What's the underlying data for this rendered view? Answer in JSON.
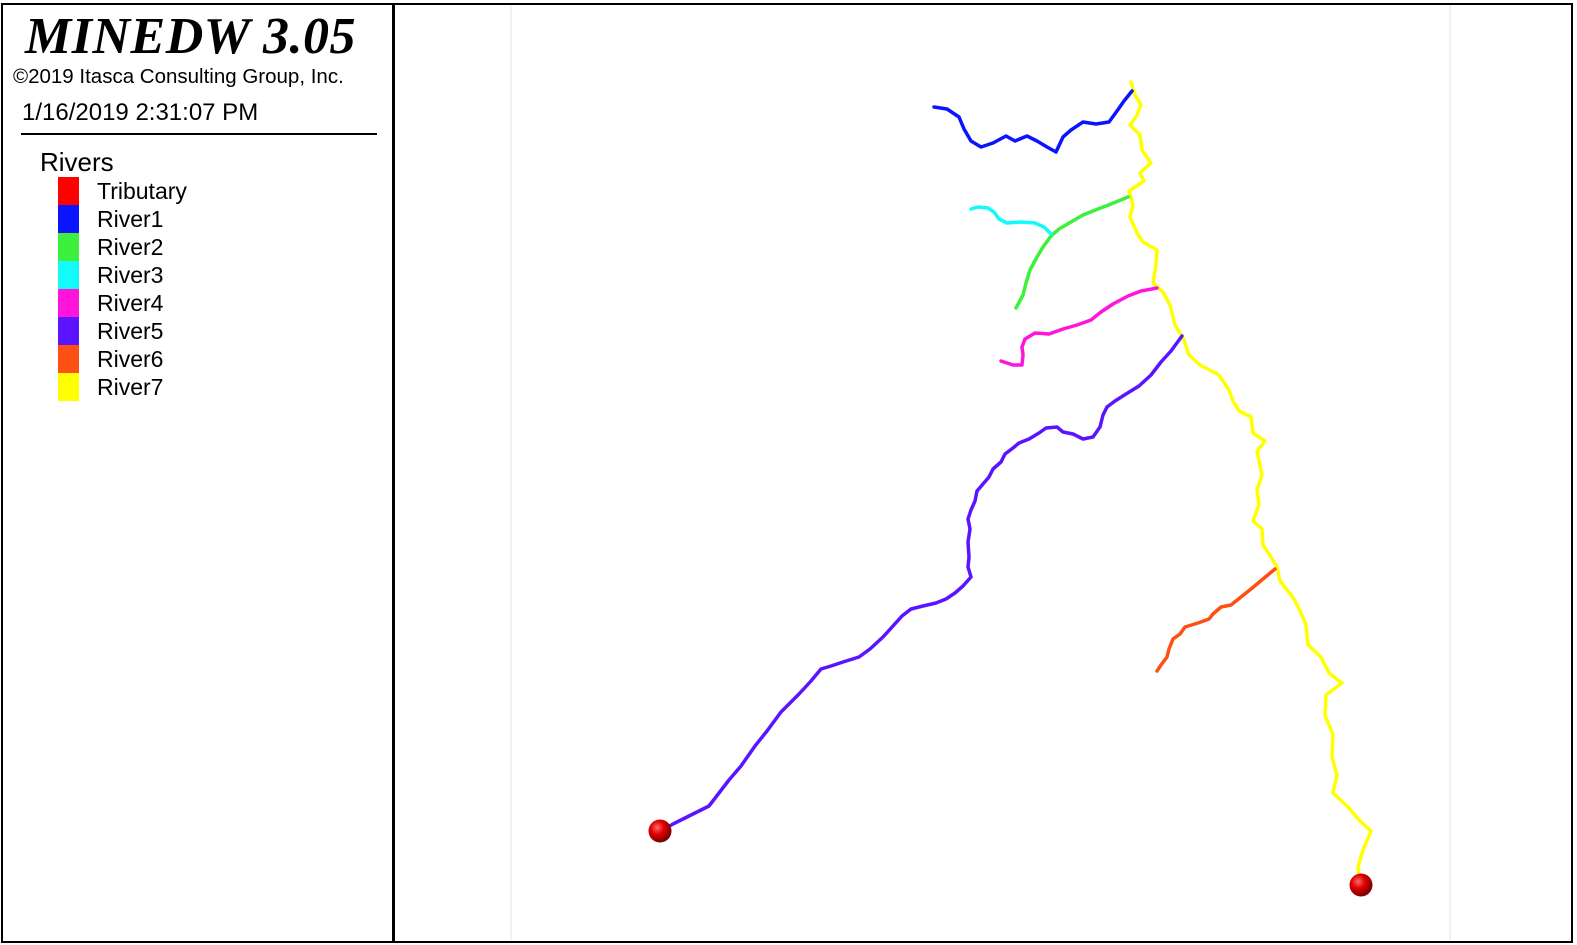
{
  "header": {
    "title": "MINEDW 3.05",
    "copyright": "©2019 Itasca Consulting Group, Inc.",
    "timestamp": "1/16/2019 2:31:07 PM"
  },
  "legend": {
    "title": "Rivers",
    "items": [
      {
        "label": "Tributary",
        "color": "#ff0000"
      },
      {
        "label": "River1",
        "color": "#0a14ff"
      },
      {
        "label": "River2",
        "color": "#3cf03c"
      },
      {
        "label": "River3",
        "color": "#14fafa"
      },
      {
        "label": "River4",
        "color": "#ff14dc"
      },
      {
        "label": "River5",
        "color": "#5a14ff"
      },
      {
        "label": "River6",
        "color": "#ff5014"
      },
      {
        "label": "River7",
        "color": "#ffff00"
      }
    ]
  },
  "map": {
    "background": "#ffffff",
    "gridline_color": "#e6e6e6"
  }
}
